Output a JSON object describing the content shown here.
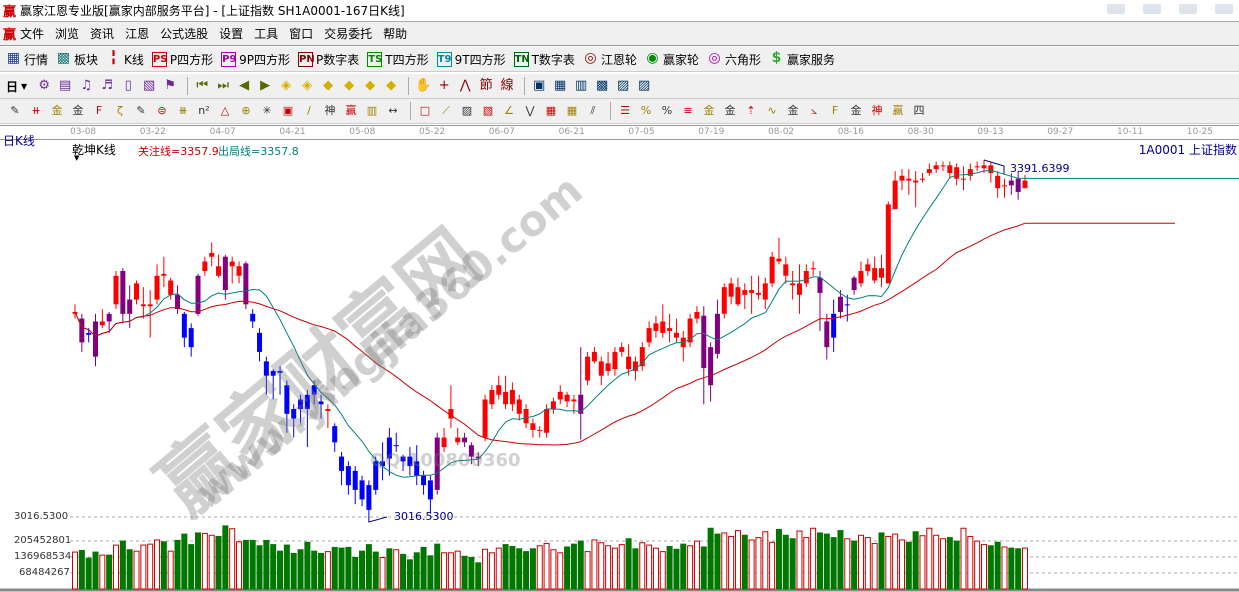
{
  "window": {
    "logo": "赢",
    "title": "赢家江恩专业版[赢家内部服务平台] - [上证指数  SH1A0001-167日K线]"
  },
  "menu": {
    "logo": "赢",
    "items": [
      "文件",
      "浏览",
      "资讯",
      "江恩",
      "公式选股",
      "设置",
      "工具",
      "窗口",
      "交易委托",
      "帮助"
    ]
  },
  "toolbar1": [
    {
      "icon": "quote-grid-icon",
      "glyph": "▦",
      "label": "行情",
      "color": "#1a3a8a"
    },
    {
      "icon": "sector-blocks-icon",
      "glyph": "▩",
      "label": "板块",
      "color": "#1a7a7a"
    },
    {
      "icon": "kline-icon",
      "glyph": "╏",
      "label": "K线",
      "color": "#c00"
    },
    {
      "icon": "ps-icon",
      "glyph": "PS",
      "label": "P四方形",
      "color": "#c00"
    },
    {
      "icon": "p9-icon",
      "glyph": "P9",
      "label": "9P四方形",
      "color": "#a0a"
    },
    {
      "icon": "pn-icon",
      "glyph": "PN",
      "label": "P数字表",
      "color": "#800"
    },
    {
      "icon": "ts-icon",
      "glyph": "TS",
      "label": "T四方形",
      "color": "#080"
    },
    {
      "icon": "t9-icon",
      "glyph": "T9",
      "label": "9T四方形",
      "color": "#08a"
    },
    {
      "icon": "tn-icon",
      "glyph": "TN",
      "label": "T数字表",
      "color": "#060"
    },
    {
      "icon": "gann-wheel-icon",
      "glyph": "◎",
      "label": "江恩轮",
      "color": "#800"
    },
    {
      "icon": "winner-wheel-icon",
      "glyph": "◉",
      "label": "赢家轮",
      "color": "#080"
    },
    {
      "icon": "hexagon-icon",
      "glyph": "◎",
      "label": "六角形",
      "color": "#a0a"
    },
    {
      "icon": "dollar-icon",
      "glyph": "$",
      "label": "赢家服务",
      "color": "#3a3"
    }
  ],
  "toolbar2": {
    "period": "日",
    "icons": [
      "network-icon",
      "notepad-icon",
      "wave3-icon",
      "wave9-icon",
      "candle-icon",
      "chart-map-icon",
      "flag-icon",
      "first-icon",
      "last-icon",
      "prev-icon",
      "next-icon",
      "arrow-left-diamond-icon",
      "arrow-right-diamond-icon",
      "expand-h-icon",
      "compress-h-icon",
      "expand-all-icon",
      "expand-v-icon",
      "hand-icon",
      "crosshair-icon",
      "line-point-icon",
      "festival-icon",
      "line-calc-icon",
      "calendar-icon",
      "calculator-icon",
      "report-icon",
      "save-icon",
      "network-pc-icon",
      "remote-icon"
    ]
  },
  "toolbar3": {
    "icons": [
      "pen-icon",
      "parallel-lines-icon",
      "gold-fib-icon",
      "gold-fib2-icon",
      "fib-f-icon",
      "spiral-icon",
      "pen-ruler-icon",
      "circle-ruler-icon",
      "quad-lines-icon",
      "n2-icon",
      "triangle-icon",
      "target-icon",
      "crosshair-red-icon",
      "square-target-icon",
      "angle-lines-icon",
      "qian-icon",
      "ying-icon",
      "ruler-123-icon",
      "width-icon",
      "rect-icon",
      "fan-icon",
      "box-icon",
      "box-diag-icon",
      "angle-icon",
      "wave-icon",
      "grid-icon",
      "grid2-icon",
      "parallel-diag-icon",
      "list-icon",
      "percent-line-icon",
      "percent-icon",
      "percent-level-icon",
      "gold-circle-icon",
      "gold-level-icon",
      "arrow-line-icon",
      "sine-icon",
      "gold-sq-icon",
      "j-fan-icon",
      "f-fan-icon",
      "gold-fan-icon",
      "god-fan-icon",
      "ying-fan-icon",
      "four-fan-icon"
    ]
  },
  "dates": [
    "03-08",
    "03-22",
    "04-07",
    "04-21",
    "05-08",
    "05-22",
    "06-07",
    "06-21",
    "07-05",
    "07-19",
    "08-02",
    "08-16",
    "08-30",
    "09-13",
    "09-27",
    "10-11",
    "10-25"
  ],
  "chart": {
    "period_label": "日K线",
    "indicator": "乾坤K线",
    "focus_line": "关注线=3357.9",
    "exit_line": "出局线=3357.8",
    "symbol": "1A0001  上证指数",
    "high_label": "3391.6399",
    "low_label": "3016.5300",
    "colors": {
      "up": "#ff0000",
      "down": "#0000ff",
      "purple": "#800080",
      "vol_up": "#cc0000",
      "vol_down": "#007700",
      "ma_short": "#008080",
      "ma_long": "#cc0000"
    }
  },
  "chart_data": {
    "type": "candlestick",
    "price_range": [
      3016.53,
      3391.6399
    ],
    "volume_ticks": [
      "3016.5300",
      "205452801",
      "136968534",
      "68484267"
    ],
    "candles_ohlc_note": "[open, close, high, low, color]",
    "candles": [
      [
        3230,
        3232,
        3240,
        3225,
        "r"
      ],
      [
        3225,
        3200,
        3230,
        3190,
        "p"
      ],
      [
        3210,
        3208,
        3215,
        3200,
        "b"
      ],
      [
        3222,
        3185,
        3230,
        3175,
        "p"
      ],
      [
        3218,
        3222,
        3235,
        3215,
        "r"
      ],
      [
        3230,
        3222,
        3232,
        3210,
        "p"
      ],
      [
        3240,
        3270,
        3275,
        3235,
        "r"
      ],
      [
        3275,
        3230,
        3278,
        3220,
        "p"
      ],
      [
        3245,
        3230,
        3260,
        3215,
        "p"
      ],
      [
        3245,
        3262,
        3265,
        3240,
        "r"
      ],
      [
        3238,
        3240,
        3258,
        3225,
        "r"
      ],
      [
        3238,
        3240,
        3255,
        3205,
        "r"
      ],
      [
        3245,
        3270,
        3282,
        3240,
        "r"
      ],
      [
        3272,
        3270,
        3290,
        3258,
        "r"
      ],
      [
        3250,
        3265,
        3268,
        3245,
        "r"
      ],
      [
        3250,
        3235,
        3260,
        3230,
        "p"
      ],
      [
        3230,
        3205,
        3232,
        3195,
        "b"
      ],
      [
        3215,
        3195,
        3220,
        3185,
        "b"
      ],
      [
        3270,
        3230,
        3272,
        3228,
        "p"
      ],
      [
        3275,
        3285,
        3290,
        3270,
        "r"
      ],
      [
        3290,
        3294,
        3305,
        3280,
        "r"
      ],
      [
        3280,
        3270,
        3292,
        3268,
        "r"
      ],
      [
        3290,
        3255,
        3292,
        3245,
        "p"
      ],
      [
        3280,
        3285,
        3290,
        3262,
        "r"
      ],
      [
        3270,
        3280,
        3285,
        3262,
        "r"
      ],
      [
        3283,
        3240,
        3285,
        3235,
        "p"
      ],
      [
        3230,
        3222,
        3235,
        3215,
        "b"
      ],
      [
        3210,
        3190,
        3215,
        3180,
        "b"
      ],
      [
        3180,
        3165,
        3185,
        3145,
        "b"
      ],
      [
        3170,
        3165,
        3172,
        3140,
        "b"
      ],
      [
        3170,
        3168,
        3175,
        3145,
        "b"
      ],
      [
        3155,
        3125,
        3160,
        3105,
        "b"
      ],
      [
        3130,
        3120,
        3135,
        3100,
        "b"
      ],
      [
        3140,
        3130,
        3145,
        3115,
        "b"
      ],
      [
        3145,
        3130,
        3150,
        3090,
        "b"
      ],
      [
        3155,
        3145,
        3160,
        3135,
        "b"
      ],
      [
        3138,
        3135,
        3145,
        3120,
        "b"
      ],
      [
        3128,
        3130,
        3135,
        3110,
        "r"
      ],
      [
        3112,
        3095,
        3115,
        3085,
        "b"
      ],
      [
        3080,
        3065,
        3085,
        3050,
        "b"
      ],
      [
        3070,
        3050,
        3075,
        3040,
        "b"
      ],
      [
        3065,
        3045,
        3070,
        3030,
        "b"
      ],
      [
        3055,
        3035,
        3060,
        3028,
        "b"
      ],
      [
        3050,
        3024,
        3055,
        3016.53,
        "b"
      ],
      [
        3075,
        3045,
        3080,
        3040,
        "b"
      ],
      [
        3070,
        3075,
        3095,
        3055,
        "b"
      ],
      [
        3100,
        3078,
        3110,
        3060,
        "b"
      ],
      [
        3092,
        3092,
        3105,
        3085,
        "b"
      ],
      [
        3080,
        3075,
        3082,
        3065,
        "b"
      ],
      [
        3080,
        3070,
        3090,
        3060,
        "b"
      ],
      [
        3075,
        3060,
        3092,
        3050,
        "b"
      ],
      [
        3060,
        3050,
        3065,
        3040,
        "b"
      ],
      [
        3055,
        3035,
        3060,
        3020,
        "b"
      ],
      [
        3100,
        3045,
        3105,
        3040,
        "p"
      ],
      [
        3090,
        3100,
        3110,
        3085,
        "r"
      ],
      [
        3120,
        3130,
        3155,
        3110,
        "r"
      ],
      [
        3095,
        3100,
        3110,
        3092,
        "r"
      ],
      [
        3100,
        3095,
        3105,
        3090,
        "p"
      ],
      [
        3092,
        3080,
        3095,
        3072,
        "p"
      ],
      [
        3080,
        3078,
        3085,
        3070,
        "p"
      ],
      [
        3100,
        3140,
        3145,
        3096,
        "r"
      ],
      [
        3135,
        3150,
        3155,
        3130,
        "r"
      ],
      [
        3145,
        3155,
        3165,
        3140,
        "r"
      ],
      [
        3148,
        3135,
        3165,
        3130,
        "r"
      ],
      [
        3150,
        3135,
        3158,
        3128,
        "r"
      ],
      [
        3140,
        3125,
        3145,
        3118,
        "r"
      ],
      [
        3130,
        3115,
        3135,
        3110,
        "r"
      ],
      [
        3115,
        3108,
        3120,
        3100,
        "r"
      ],
      [
        3108,
        3108,
        3112,
        3100,
        "r"
      ],
      [
        3105,
        3130,
        3135,
        3100,
        "r"
      ],
      [
        3130,
        3138,
        3142,
        3125,
        "r"
      ],
      [
        3140,
        3148,
        3155,
        3135,
        "r"
      ],
      [
        3145,
        3138,
        3148,
        3132,
        "r"
      ],
      [
        3140,
        3138,
        3145,
        3125,
        "r"
      ],
      [
        3145,
        3125,
        3195,
        3098,
        "p"
      ],
      [
        3160,
        3185,
        3190,
        3155,
        "r"
      ],
      [
        3180,
        3190,
        3195,
        3178,
        "r"
      ],
      [
        3165,
        3180,
        3185,
        3155,
        "r"
      ],
      [
        3170,
        3178,
        3190,
        3165,
        "r"
      ],
      [
        3172,
        3190,
        3195,
        3165,
        "r"
      ],
      [
        3190,
        3195,
        3200,
        3185,
        "r"
      ],
      [
        3185,
        3172,
        3198,
        3165,
        "r"
      ],
      [
        3180,
        3170,
        3185,
        3160,
        "r"
      ],
      [
        3175,
        3195,
        3200,
        3170,
        "r"
      ],
      [
        3200,
        3215,
        3222,
        3195,
        "r"
      ],
      [
        3212,
        3220,
        3228,
        3205,
        "r"
      ],
      [
        3210,
        3222,
        3240,
        3205,
        "r"
      ],
      [
        3215,
        3212,
        3230,
        3200,
        "r"
      ],
      [
        3210,
        3205,
        3225,
        3200,
        "r"
      ],
      [
        3205,
        3195,
        3212,
        3180,
        "r"
      ],
      [
        3200,
        3225,
        3230,
        3195,
        "r"
      ],
      [
        3225,
        3232,
        3238,
        3220,
        "r"
      ],
      [
        3228,
        3173,
        3238,
        3135,
        "p"
      ],
      [
        3195,
        3155,
        3200,
        3138,
        "p"
      ],
      [
        3230,
        3188,
        3245,
        3183,
        "p"
      ],
      [
        3230,
        3258,
        3262,
        3225,
        "r"
      ],
      [
        3248,
        3262,
        3268,
        3240,
        "r"
      ],
      [
        3240,
        3258,
        3268,
        3238,
        "r"
      ],
      [
        3255,
        3250,
        3262,
        3235,
        "r"
      ],
      [
        3252,
        3255,
        3270,
        3230,
        "r"
      ],
      [
        3250,
        3252,
        3270,
        3245,
        "r"
      ],
      [
        3245,
        3262,
        3268,
        3235,
        "r"
      ],
      [
        3262,
        3290,
        3295,
        3258,
        "r"
      ],
      [
        3288,
        3285,
        3310,
        3282,
        "r"
      ],
      [
        3282,
        3270,
        3290,
        3262,
        "r"
      ],
      [
        3262,
        3260,
        3275,
        3245,
        "r"
      ],
      [
        3250,
        3262,
        3282,
        3230,
        "r"
      ],
      [
        3262,
        3275,
        3282,
        3258,
        "r"
      ],
      [
        3278,
        3278,
        3285,
        3270,
        "r"
      ],
      [
        3268,
        3252,
        3275,
        3212,
        "p"
      ],
      [
        3222,
        3195,
        3230,
        3182,
        "p"
      ],
      [
        3230,
        3205,
        3245,
        3190,
        "b"
      ],
      [
        3248,
        3232,
        3255,
        3225,
        "p"
      ],
      [
        3240,
        3240,
        3250,
        3222,
        "b"
      ],
      [
        3268,
        3255,
        3270,
        3250,
        "p"
      ],
      [
        3262,
        3275,
        3285,
        3258,
        "r"
      ],
      [
        3275,
        3282,
        3288,
        3270,
        "r"
      ],
      [
        3265,
        3278,
        3290,
        3262,
        "r"
      ],
      [
        3278,
        3268,
        3292,
        3258,
        "r"
      ],
      [
        3262,
        3345,
        3348,
        3262,
        "r"
      ],
      [
        3340,
        3370,
        3380,
        3340,
        "r"
      ],
      [
        3370,
        3375,
        3382,
        3360,
        "r"
      ],
      [
        3372,
        3370,
        3382,
        3355,
        "r"
      ],
      [
        3370,
        3368,
        3380,
        3342,
        "r"
      ],
      [
        3372,
        3372,
        3378,
        3368,
        "r"
      ],
      [
        3378,
        3382,
        3388,
        3375,
        "r"
      ],
      [
        3382,
        3386,
        3390,
        3378,
        "r"
      ],
      [
        3386,
        3386,
        3390,
        3380,
        "r"
      ],
      [
        3386,
        3378,
        3390,
        3372,
        "r"
      ],
      [
        3384,
        3372,
        3388,
        3365,
        "r"
      ],
      [
        3372,
        3372,
        3385,
        3360,
        "r"
      ],
      [
        3375,
        3382,
        3388,
        3370,
        "r"
      ],
      [
        3385,
        3385,
        3390,
        3380,
        "r"
      ],
      [
        3383,
        3386,
        3391.6399,
        3378,
        "r"
      ],
      [
        3386,
        3378,
        3389,
        3368,
        "r"
      ],
      [
        3375,
        3362,
        3380,
        3352,
        "r"
      ],
      [
        3365,
        3365,
        3372,
        3352,
        "r"
      ],
      [
        3370,
        3365,
        3378,
        3355,
        "p"
      ],
      [
        3372,
        3358,
        3380,
        3350,
        "p"
      ],
      [
        3362,
        3370,
        3376,
        3362,
        "r"
      ]
    ],
    "volumes": [
      158000000.0,
      165000000.0,
      132000000.0,
      158000000.0,
      145000000.0,
      145000000.0,
      188000000.0,
      205000000.0,
      168000000.0,
      162000000.0,
      188000000.0,
      192000000.0,
      210000000.0,
      202000000.0,
      162000000.0,
      208000000.0,
      235000000.0,
      190000000.0,
      240000000.0,
      238000000.0,
      230000000.0,
      225000000.0,
      270000000.0,
      258000000.0,
      202000000.0,
      208000000.0,
      208000000.0,
      185000000.0,
      208000000.0,
      190000000.0,
      162000000.0,
      188000000.0,
      152000000.0,
      168000000.0,
      200000000.0,
      162000000.0,
      152000000.0,
      160000000.0,
      178000000.0,
      175000000.0,
      178000000.0,
      135000000.0,
      162000000.0,
      190000000.0,
      158000000.0,
      135000000.0,
      172000000.0,
      168000000.0,
      148000000.0,
      125000000.0,
      155000000.0,
      178000000.0,
      142000000.0,
      192000000.0,
      155000000.0,
      155000000.0,
      162000000.0,
      140000000.0,
      135000000.0,
      112000000.0,
      170000000.0,
      155000000.0,
      175000000.0,
      190000000.0,
      182000000.0,
      172000000.0,
      160000000.0,
      172000000.0,
      185000000.0,
      195000000.0,
      168000000.0,
      155000000.0,
      180000000.0,
      192000000.0,
      205000000.0,
      160000000.0,
      210000000.0,
      198000000.0,
      185000000.0,
      175000000.0,
      190000000.0,
      215000000.0,
      172000000.0,
      198000000.0,
      188000000.0,
      175000000.0,
      160000000.0,
      182000000.0,
      170000000.0,
      192000000.0,
      185000000.0,
      205000000.0,
      180000000.0,
      260000000.0,
      235000000.0,
      240000000.0,
      225000000.0,
      250000000.0,
      230000000.0,
      210000000.0,
      220000000.0,
      245000000.0,
      200000000.0,
      255000000.0,
      230000000.0,
      215000000.0,
      248000000.0,
      220000000.0,
      260000000.0,
      240000000.0,
      235000000.0,
      220000000.0,
      250000000.0,
      215000000.0,
      205000000.0,
      230000000.0,
      220000000.0,
      195000000.0,
      240000000.0,
      225000000.0,
      235000000.0,
      210000000.0,
      200000000.0,
      245000000.0,
      228000000.0,
      260000000.0,
      230000000.0,
      215000000.0,
      220000000.0,
      205000000.0,
      260000000.0,
      225000000.0,
      205000000.0,
      190000000.0,
      185000000.0,
      200000000.0,
      180000000.0,
      175000000.0,
      172000000.0,
      175000000.0
    ]
  },
  "watermark": {
    "brand": "赢家财富网",
    "url": "www.yingjia360.com",
    "qq": "QQ:100800360"
  }
}
